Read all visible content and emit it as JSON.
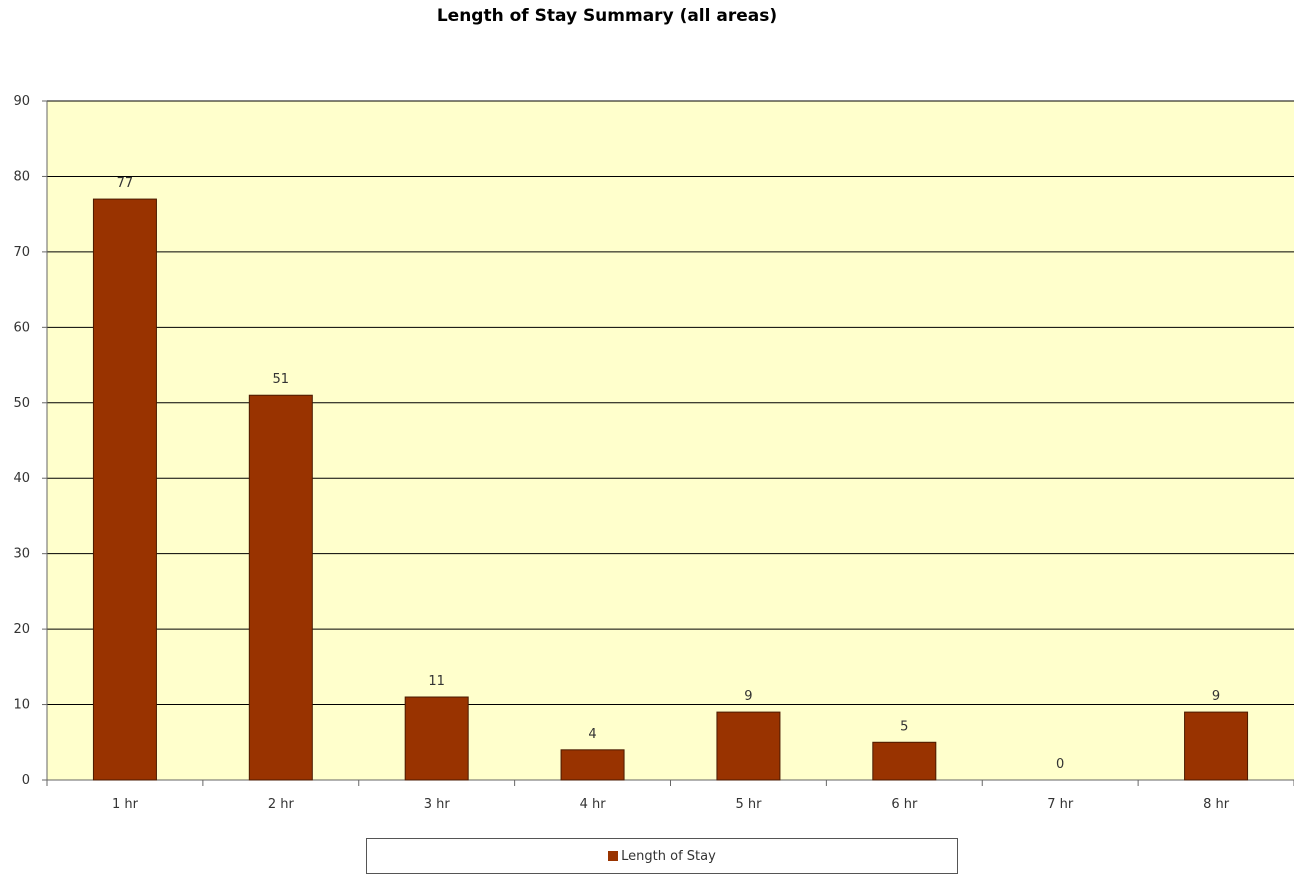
{
  "colors": {
    "bar": "#993300",
    "plot_bg": "#FFFFCC",
    "grid": "#000000"
  },
  "chart_data": {
    "type": "bar",
    "title": "Length of Stay Summary (all areas)",
    "xlabel": "",
    "ylabel": "",
    "categories": [
      "1 hr",
      "2 hr",
      "3 hr",
      "4 hr",
      "5 hr",
      "6 hr",
      "7 hr",
      "8 hr"
    ],
    "series": [
      {
        "name": "Length of Stay",
        "values": [
          77,
          51,
          11,
          4,
          9,
          5,
          0,
          9
        ]
      }
    ],
    "ylim": [
      0,
      90
    ],
    "yticks": [
      0,
      10,
      20,
      30,
      40,
      50,
      60,
      70,
      80,
      90
    ],
    "grid": true,
    "data_labels": true,
    "legend_position": "bottom"
  }
}
